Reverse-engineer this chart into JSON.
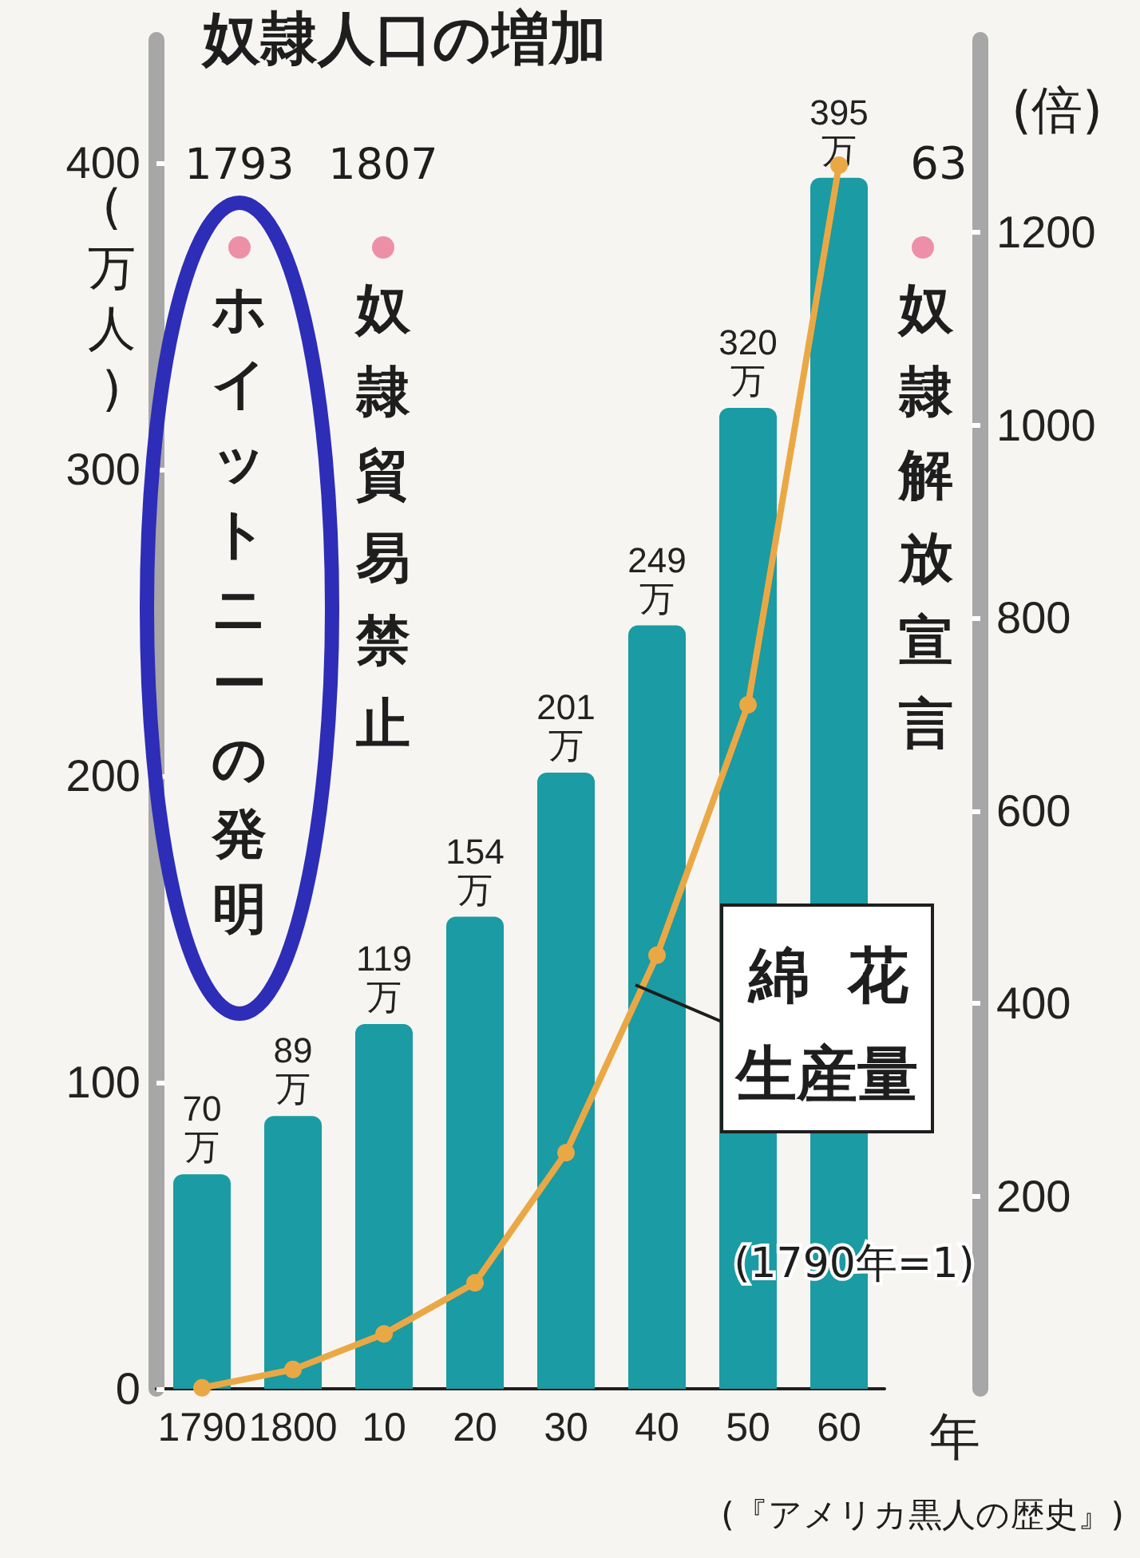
{
  "chart_data": {
    "type": "bar",
    "title": "奴隷人口の増加",
    "xlabel": "年",
    "ylabel": "(万人)",
    "y2label": "(倍)",
    "categories": [
      "1790",
      "1800",
      "10",
      "20",
      "30",
      "40",
      "50",
      "60"
    ],
    "series": [
      {
        "color": "#1b9ba3",
        "values": [
          70,
          89,
          119,
          154,
          201,
          249,
          320,
          395
        ],
        "value_labels": [
          "70万",
          "89万",
          "119万",
          "154万",
          "201万",
          "249万",
          "320万",
          "395万"
        ]
      },
      {
        "type": "line",
        "name": "綿花生産量",
        "axis": "y2",
        "color": "#eaa845",
        "values": [
          1,
          20,
          57,
          110,
          245,
          450,
          710,
          1270
        ]
      }
    ],
    "ylim": [
      0,
      440
    ],
    "yticks": [
      0,
      100,
      200,
      300,
      400
    ],
    "y2lim": [
      0,
      1400
    ],
    "y2ticks": [
      200,
      400,
      600,
      800,
      1000,
      1200
    ],
    "marker": "circle",
    "grid": false,
    "legend": false,
    "annotations": [
      "1793",
      "ホイットニーの発明",
      "1807",
      "奴隷貿易禁止",
      "63",
      "奴隷解放宣言",
      "(1790年=1)",
      "(『アメリカ黒人の歴史』)"
    ]
  }
}
